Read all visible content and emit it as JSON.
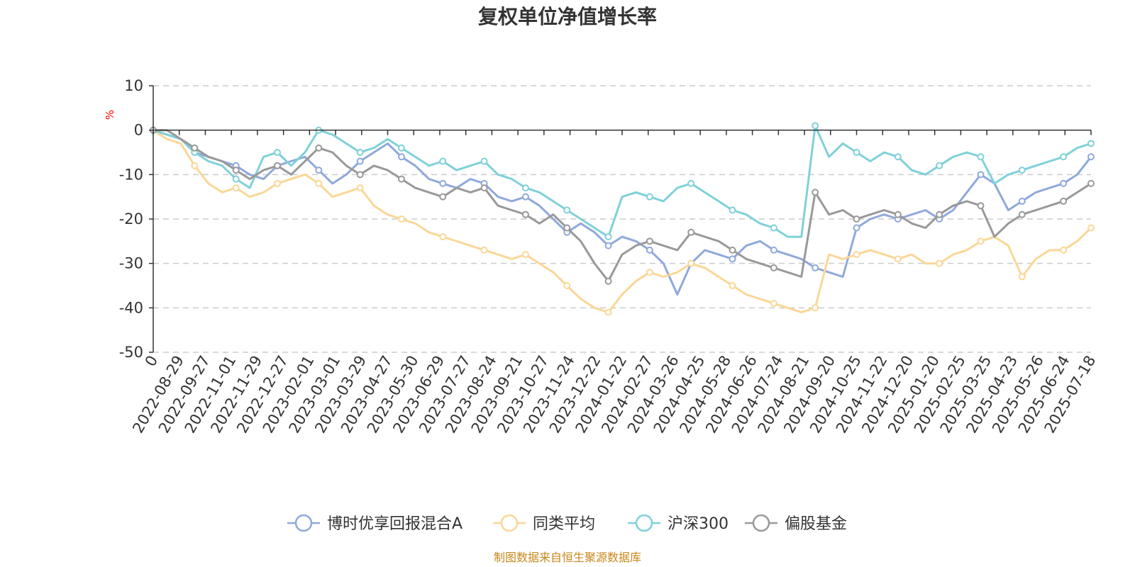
{
  "chart_data": {
    "type": "line",
    "title": "复权单位净值增长率",
    "ylabel": "%",
    "ylim": [
      -50,
      10
    ],
    "y_ticks": [
      "10",
      "0",
      "-10",
      "-20",
      "-30",
      "-40",
      "-50"
    ],
    "x_ticks": [
      "0",
      "2022-08-29",
      "2022-09-27",
      "2022-11-01",
      "2022-11-29",
      "2022-12-27",
      "2023-02-01",
      "2023-03-01",
      "2023-03-29",
      "2023-04-27",
      "2023-05-30",
      "2023-06-29",
      "2023-07-27",
      "2023-08-24",
      "2023-09-21",
      "2023-10-27",
      "2023-11-24",
      "2023-12-22",
      "2024-01-22",
      "2024-02-27",
      "2024-03-26",
      "2024-04-25",
      "2024-05-28",
      "2024-06-26",
      "2024-07-24",
      "2024-08-21",
      "2024-09-20",
      "2024-10-25",
      "2024-11-22",
      "2024-12-20",
      "2025-01-20",
      "2025-02-25",
      "2025-03-25",
      "2025-04-23",
      "2025-05-26",
      "2025-06-24",
      "2025-07-18"
    ],
    "grid": "horizontal-dashed",
    "legend_position": "bottom",
    "series": [
      {
        "name": "博时优享回报混合A",
        "color": "#8fa9db",
        "values": [
          0,
          -1,
          -2,
          -5,
          -6,
          -7,
          -8,
          -10,
          -11,
          -8,
          -7,
          -6,
          -9,
          -12,
          -10,
          -7,
          -5,
          -3,
          -6,
          -8,
          -11,
          -12,
          -13,
          -11,
          -12,
          -15,
          -16,
          -15,
          -17,
          -20,
          -23,
          -21,
          -23,
          -26,
          -24,
          -25,
          -27,
          -30,
          -37,
          -30,
          -27,
          -28,
          -29,
          -26,
          -25,
          -27,
          -28,
          -29,
          -31,
          -32,
          -33,
          -22,
          -20,
          -19,
          -20,
          -19,
          -18,
          -20,
          -18,
          -14,
          -10,
          -12,
          -18,
          -16,
          -14,
          -13,
          -12,
          -10,
          -6
        ]
      },
      {
        "name": "同类平均",
        "color": "#fad797",
        "values": [
          0,
          -2,
          -3,
          -8,
          -12,
          -14,
          -13,
          -15,
          -14,
          -12,
          -11,
          -10,
          -12,
          -15,
          -14,
          -13,
          -17,
          -19,
          -20,
          -21,
          -23,
          -24,
          -25,
          -26,
          -27,
          -28,
          -29,
          -28,
          -30,
          -32,
          -35,
          -38,
          -40,
          -41,
          -37,
          -34,
          -32,
          -33,
          -32,
          -30,
          -31,
          -33,
          -35,
          -37,
          -38,
          -39,
          -40,
          -41,
          -40,
          -28,
          -29,
          -28,
          -27,
          -28,
          -29,
          -28,
          -30,
          -30,
          -28,
          -27,
          -25,
          -24,
          -26,
          -33,
          -29,
          -27,
          -27,
          -25,
          -22
        ]
      },
      {
        "name": "沪深300",
        "color": "#7fd1d8",
        "values": [
          0,
          -1,
          -2,
          -5,
          -7,
          -8,
          -11,
          -13,
          -6,
          -5,
          -8,
          -5,
          0,
          -1,
          -3,
          -5,
          -4,
          -2,
          -4,
          -6,
          -8,
          -7,
          -9,
          -8,
          -7,
          -10,
          -11,
          -13,
          -14,
          -16,
          -18,
          -20,
          -22,
          -24,
          -15,
          -14,
          -15,
          -16,
          -13,
          -12,
          -14,
          -16,
          -18,
          -19,
          -21,
          -22,
          -24,
          -24,
          1,
          -6,
          -3,
          -5,
          -7,
          -5,
          -6,
          -9,
          -10,
          -8,
          -6,
          -5,
          -6,
          -12,
          -10,
          -9,
          -8,
          -7,
          -6,
          -4,
          -3
        ]
      },
      {
        "name": "偏股基金",
        "color": "#999999",
        "values": [
          0,
          0,
          -2,
          -4,
          -6,
          -7,
          -9,
          -11,
          -9,
          -8,
          -10,
          -7,
          -4,
          -5,
          -8,
          -10,
          -8,
          -9,
          -11,
          -13,
          -14,
          -15,
          -13,
          -14,
          -13,
          -17,
          -18,
          -19,
          -21,
          -19,
          -22,
          -25,
          -30,
          -34,
          -28,
          -26,
          -25,
          -26,
          -27,
          -23,
          -24,
          -25,
          -27,
          -29,
          -30,
          -31,
          -32,
          -33,
          -14,
          -19,
          -18,
          -20,
          -19,
          -18,
          -19,
          -21,
          -22,
          -19,
          -17,
          -16,
          -17,
          -24,
          -21,
          -19,
          -18,
          -17,
          -16,
          -14,
          -12
        ]
      }
    ]
  },
  "footer": "制图数据来自恒生聚源数据库"
}
